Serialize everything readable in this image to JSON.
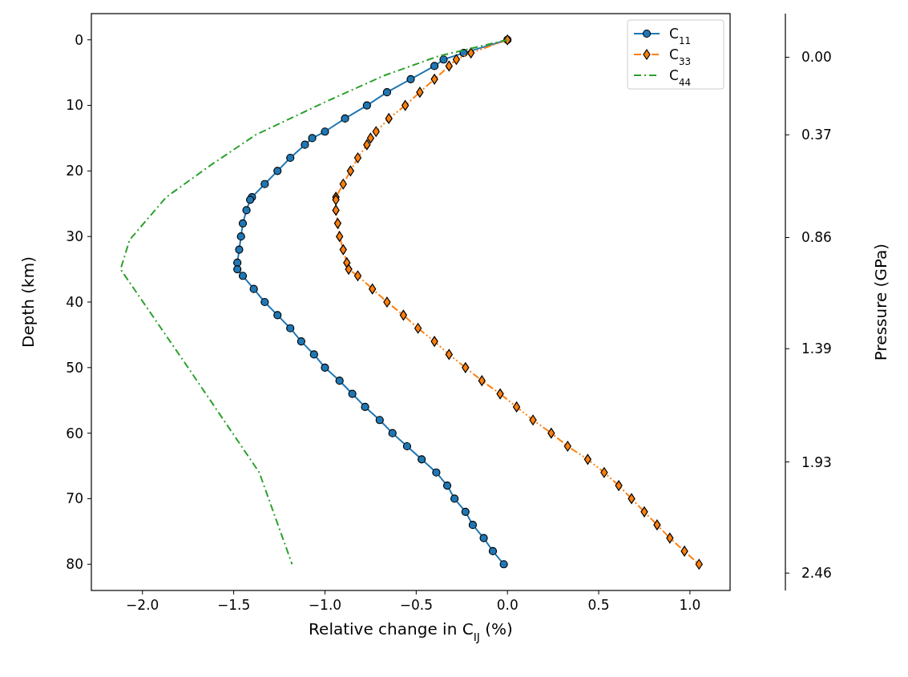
{
  "chart_data": {
    "type": "line",
    "xlabel": "Relative change in C$_{IJ}$ (%)",
    "ylabel": "Depth (km)",
    "y2label": "Pressure (GPa)",
    "xlim": [
      -2.28,
      1.22
    ],
    "ylim": [
      84,
      -4
    ],
    "y2lim": [
      2.543,
      -0.208
    ],
    "xticks": [
      {
        "value": -2.0,
        "label": "−2.0"
      },
      {
        "value": -1.5,
        "label": "−1.5"
      },
      {
        "value": -1.0,
        "label": "−1.0"
      },
      {
        "value": -0.5,
        "label": "−0.5"
      },
      {
        "value": 0.0,
        "label": "0.0"
      },
      {
        "value": 0.5,
        "label": "0.5"
      },
      {
        "value": 1.0,
        "label": "1.0"
      }
    ],
    "yticks": [
      0,
      10,
      20,
      30,
      40,
      50,
      60,
      70,
      80
    ],
    "y2ticks": [
      {
        "value": 0,
        "label": "0.00"
      },
      {
        "value": 0.37,
        "label": "0.37"
      },
      {
        "value": 0.86,
        "label": "0.86"
      },
      {
        "value": 1.39,
        "label": "1.39"
      },
      {
        "value": 1.93,
        "label": "1.93"
      },
      {
        "value": 2.46,
        "label": "2.46"
      }
    ],
    "legend": "top right",
    "series": [
      {
        "name": "C$_{11}$",
        "color": "#1f77b4",
        "marker": "circle",
        "line_style": "solid",
        "x": [
          0,
          -0.24,
          -0.35,
          -0.4,
          -0.53,
          -0.66,
          -0.77,
          -0.89,
          -1.0,
          -1.07,
          -1.11,
          -1.19,
          -1.26,
          -1.33,
          -1.4,
          -1.41,
          -1.43,
          -1.45,
          -1.46,
          -1.47,
          -1.48,
          -1.48,
          -1.45,
          -1.39,
          -1.33,
          -1.26,
          -1.19,
          -1.13,
          -1.06,
          -1.0,
          -0.92,
          -0.85,
          -0.78,
          -0.7,
          -0.63,
          -0.55,
          -0.47,
          -0.39,
          -0.33,
          -0.29,
          -0.23,
          -0.19,
          -0.13,
          -0.08,
          -0.02
        ],
        "values": [
          0,
          2,
          3,
          4,
          6,
          8,
          10,
          12,
          14,
          15,
          16,
          18,
          20,
          22,
          24,
          24.4,
          26,
          28,
          30,
          32,
          34,
          35,
          36,
          38,
          40,
          42,
          44,
          46,
          48,
          50,
          52,
          54,
          56,
          58,
          60,
          62,
          64,
          66,
          68,
          70,
          72,
          74,
          76,
          78,
          80
        ]
      },
      {
        "name": "C$_{33}$",
        "color": "#ff7f0e",
        "marker": "diamond",
        "line_style": "dashdotdot",
        "x": [
          0,
          -0.2,
          -0.28,
          -0.32,
          -0.4,
          -0.48,
          -0.56,
          -0.65,
          -0.72,
          -0.75,
          -0.77,
          -0.82,
          -0.86,
          -0.9,
          -0.94,
          -0.94,
          -0.94,
          -0.93,
          -0.92,
          -0.9,
          -0.88,
          -0.87,
          -0.82,
          -0.74,
          -0.66,
          -0.57,
          -0.49,
          -0.4,
          -0.32,
          -0.23,
          -0.14,
          -0.04,
          0.05,
          0.14,
          0.24,
          0.33,
          0.44,
          0.53,
          0.61,
          0.68,
          0.75,
          0.82,
          0.89,
          0.97,
          1.05
        ],
        "values": [
          0,
          2,
          3,
          4,
          6,
          8,
          10,
          12,
          14,
          15,
          16,
          18,
          20,
          22,
          24,
          24.4,
          26,
          28,
          30,
          32,
          34,
          35,
          36,
          38,
          40,
          42,
          44,
          46,
          48,
          50,
          52,
          54,
          56,
          58,
          60,
          62,
          64,
          66,
          68,
          70,
          72,
          74,
          76,
          78,
          80
        ]
      },
      {
        "name": "C$_{44}$",
        "color": "#2ca02c",
        "marker": "none",
        "line_style": "dashdot",
        "x": [
          0,
          -0.38,
          -0.68,
          -1.0,
          -1.38,
          -1.62,
          -1.87,
          -2.07,
          -2.12,
          -1.75,
          -1.36,
          -1.18
        ],
        "values": [
          0,
          2.5,
          5.5,
          9.5,
          14.5,
          19,
          24,
          30.5,
          35,
          50,
          66,
          80
        ]
      }
    ]
  }
}
